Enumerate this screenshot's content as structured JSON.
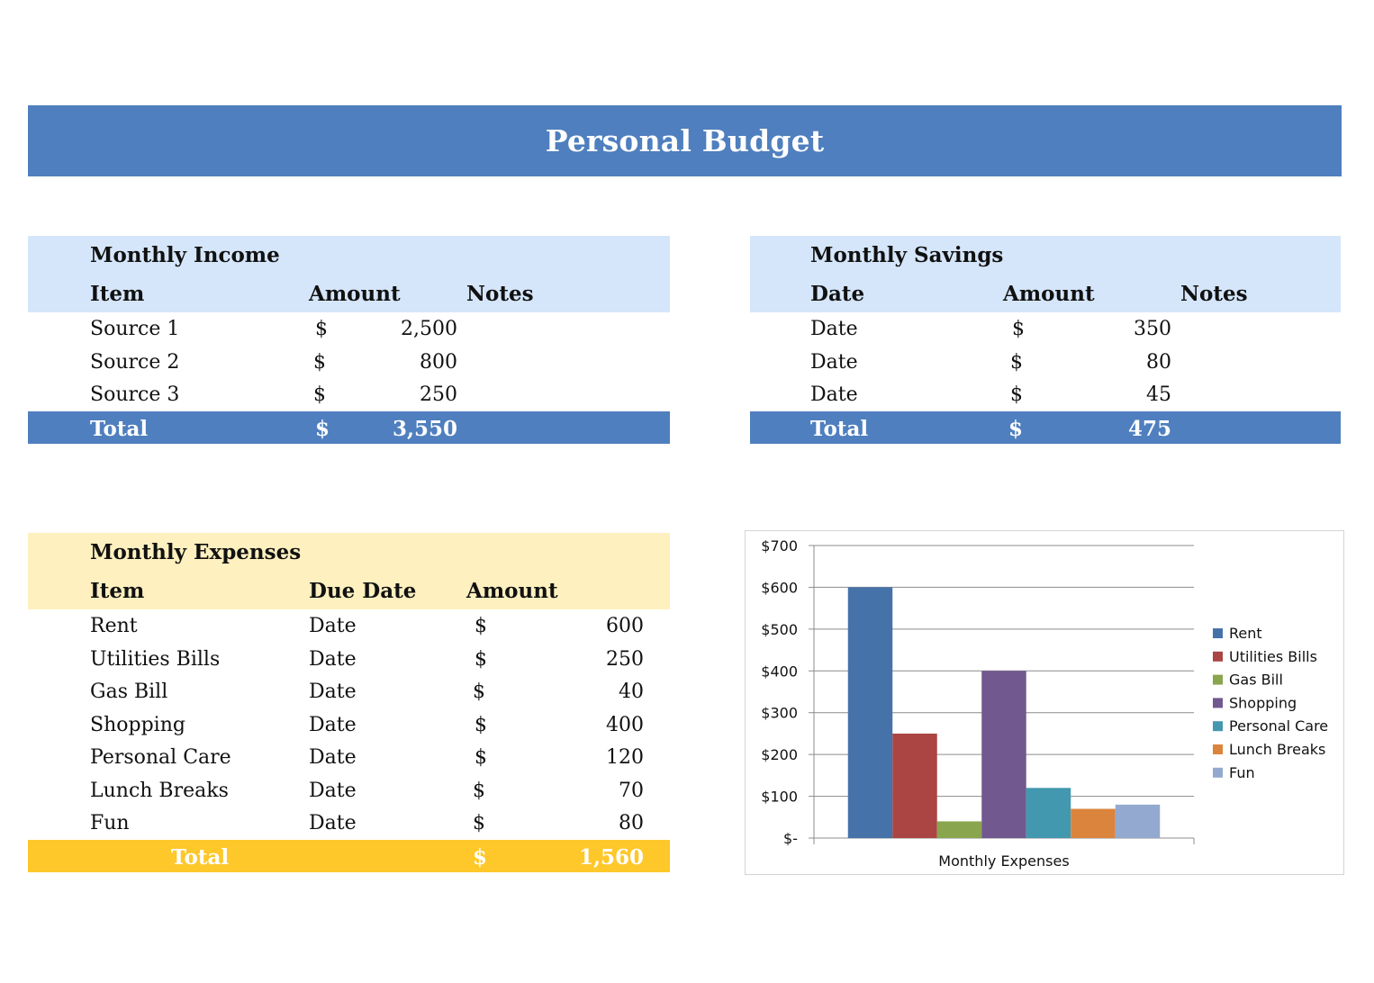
{
  "title": "Personal Budget",
  "income": {
    "title": "Monthly Income",
    "columns": [
      "Item",
      "Amount",
      "Notes"
    ],
    "rows": [
      {
        "item": "Source 1",
        "cur": "$",
        "amount": "2,500"
      },
      {
        "item": "Source 2",
        "cur": "$",
        "amount": "800"
      },
      {
        "item": "Source 3",
        "cur": "$",
        "amount": "250"
      }
    ],
    "total": {
      "label": "Total",
      "cur": "$",
      "amount": "3,550"
    }
  },
  "savings": {
    "title": "Monthly Savings",
    "columns": [
      "Date",
      "Amount",
      "Notes"
    ],
    "rows": [
      {
        "date": "Date",
        "cur": "$",
        "amount": "350"
      },
      {
        "date": "Date",
        "cur": "$",
        "amount": "80"
      },
      {
        "date": "Date",
        "cur": "$",
        "amount": "45"
      }
    ],
    "total": {
      "label": "Total",
      "cur": "$",
      "amount": "475"
    }
  },
  "expenses": {
    "title": "Monthly Expenses",
    "columns": [
      "Item",
      "Due Date",
      "Amount"
    ],
    "rows": [
      {
        "item": "Rent",
        "date": "Date",
        "cur": "$",
        "amount": "600"
      },
      {
        "item": "Utilities Bills",
        "date": "Date",
        "cur": "$",
        "amount": "250"
      },
      {
        "item": "Gas Bill",
        "date": "Date",
        "cur": "$",
        "amount": "40"
      },
      {
        "item": "Shopping",
        "date": "Date",
        "cur": "$",
        "amount": "400"
      },
      {
        "item": "Personal Care",
        "date": "Date",
        "cur": "$",
        "amount": "120"
      },
      {
        "item": "Lunch Breaks",
        "date": "Date",
        "cur": "$",
        "amount": "70"
      },
      {
        "item": "Fun",
        "date": "Date",
        "cur": "$",
        "amount": "80"
      }
    ],
    "total": {
      "label": "Total",
      "cur": "$",
      "amount": "1,560"
    }
  },
  "colors": {
    "banner": "#4f7fbe",
    "blue_header": "#d5e6fa",
    "yellow_header": "#fef0bf",
    "yellow_total": "#fec82a"
  },
  "chart_data": {
    "type": "bar",
    "categories": [
      "Monthly Expenses"
    ],
    "series": [
      {
        "name": "Rent",
        "values": [
          600
        ],
        "color": "#4672aa"
      },
      {
        "name": "Utilities Bills",
        "values": [
          250
        ],
        "color": "#aa4543"
      },
      {
        "name": "Gas Bill",
        "values": [
          40
        ],
        "color": "#89a54e"
      },
      {
        "name": "Shopping",
        "values": [
          400
        ],
        "color": "#71588f"
      },
      {
        "name": "Personal Care",
        "values": [
          120
        ],
        "color": "#4298af"
      },
      {
        "name": "Lunch Breaks",
        "values": [
          70
        ],
        "color": "#db843d"
      },
      {
        "name": "Fun",
        "values": [
          80
        ],
        "color": "#93a9cf"
      }
    ],
    "ylim": [
      0,
      700
    ],
    "yticks": [
      "$-",
      "$100",
      "$200",
      "$300",
      "$400",
      "$500",
      "$600",
      "$700"
    ],
    "grid": true,
    "legend": "right"
  }
}
